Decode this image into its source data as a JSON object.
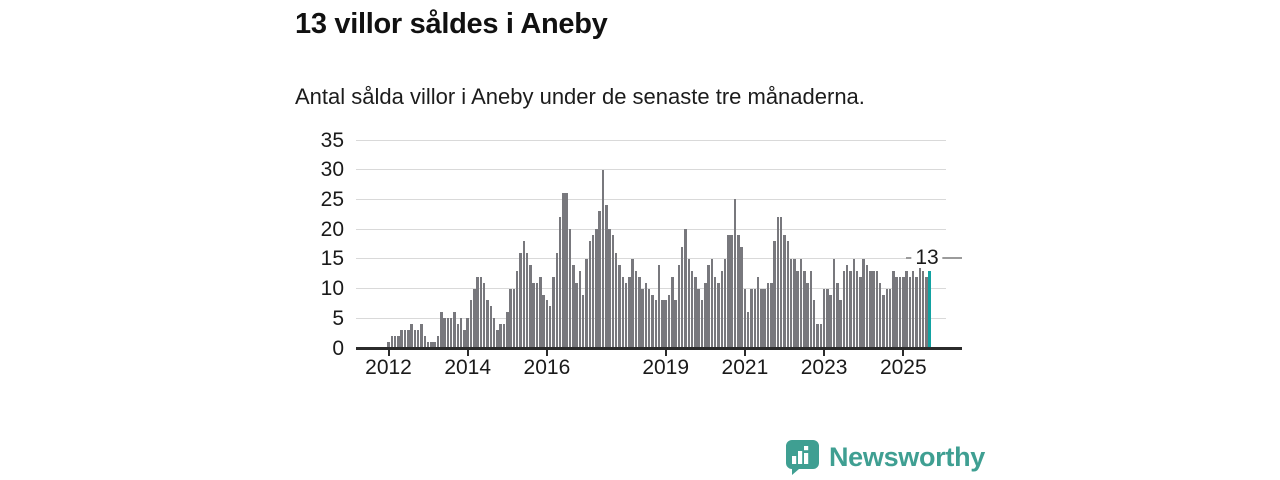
{
  "page": {
    "background": "#ffffff"
  },
  "header": {
    "title": "13 villor såldes i Aneby",
    "subtitle": "Antal sålda villor i Aneby under de senaste tre månaderna."
  },
  "chart_data": {
    "type": "bar",
    "title": "13 villor såldes i Aneby",
    "subtitle": "Antal sålda villor i Aneby under de senaste tre månaderna.",
    "frequency": "monthly",
    "x_start": "2012-01",
    "x_end": "2025-09",
    "values": [
      1,
      2,
      2,
      2,
      3,
      3,
      3,
      4,
      3,
      3,
      4,
      2,
      1,
      1,
      1,
      2,
      6,
      5,
      5,
      5,
      6,
      4,
      5,
      3,
      5,
      8,
      10,
      12,
      12,
      11,
      8,
      7,
      5,
      3,
      4,
      4,
      6,
      10,
      10,
      13,
      16,
      18,
      16,
      14,
      11,
      11,
      12,
      9,
      8,
      7,
      12,
      16,
      22,
      26,
      26,
      20,
      14,
      11,
      13,
      9,
      15,
      18,
      19,
      20,
      23,
      30,
      24,
      20,
      19,
      16,
      14,
      12,
      11,
      12,
      15,
      13,
      12,
      10,
      11,
      10,
      9,
      8,
      14,
      8,
      8,
      9,
      12,
      8,
      14,
      17,
      20,
      15,
      13,
      12,
      10,
      8,
      11,
      14,
      15,
      12,
      11,
      13,
      15,
      19,
      19,
      25,
      19,
      17,
      10,
      6,
      10,
      10,
      12,
      10,
      10,
      11,
      11,
      18,
      22,
      22,
      19,
      18,
      15,
      15,
      13,
      15,
      13,
      11,
      13,
      8,
      4,
      4,
      10,
      10,
      9,
      15,
      11,
      8,
      13,
      14,
      13,
      15,
      13,
      12,
      15,
      14,
      13,
      13,
      13,
      11,
      9,
      10,
      10,
      13,
      12,
      12,
      12,
      13,
      12,
      13,
      12,
      16,
      13,
      12,
      13
    ],
    "ylim": [
      0,
      35
    ],
    "yticks": [
      0,
      5,
      10,
      15,
      20,
      25,
      30,
      35
    ],
    "xticks": [
      {
        "label": "2012",
        "index": 0
      },
      {
        "label": "2014",
        "index": 24
      },
      {
        "label": "2016",
        "index": 48
      },
      {
        "label": "2019",
        "index": 84
      },
      {
        "label": "2021",
        "index": 108
      },
      {
        "label": "2023",
        "index": 132
      },
      {
        "label": "2025",
        "index": 156
      }
    ],
    "grid": true,
    "gridline_color": "#d9d9d9",
    "bar_color": "#78787d",
    "highlight_color": "#12a2a2",
    "highlight_index": 164,
    "annotation": {
      "text": "13",
      "value": 13
    },
    "axis_color": "#2b2b2b",
    "legend": "none"
  },
  "footer": {
    "brand": "Newsworthy",
    "brand_color": "#3f9f92",
    "logo_icon": "speech-bubble-bar-chart-icon"
  }
}
